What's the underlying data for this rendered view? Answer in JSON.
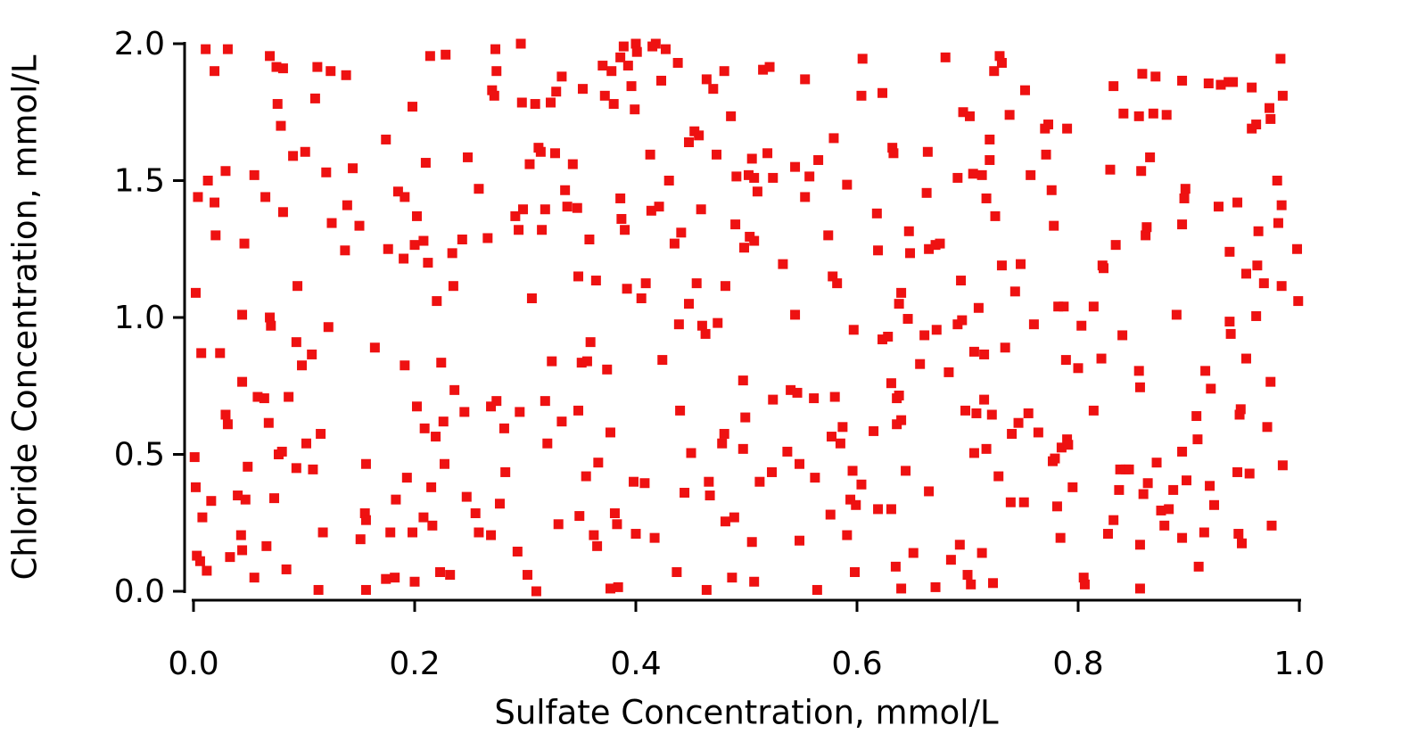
{
  "chart_data": {
    "type": "scatter",
    "x_label": "Sulfate Concentration, mmol/L",
    "y_label": "Chloride Concentration, mmol/L",
    "color": "#ee1111",
    "xlim": [
      0,
      1
    ],
    "ylim": [
      0,
      2
    ],
    "xticks": [
      {
        "value": 0,
        "label": "0.0"
      },
      0.2,
      0.4,
      0.6,
      0.8,
      {
        "value": 1,
        "label": "1.0"
      }
    ],
    "yticks": [
      {
        "value": 0,
        "label": "0.0"
      },
      0.5,
      {
        "value": 1,
        "label": "1.0"
      },
      1.5,
      {
        "value": 2,
        "label": "2.0"
      }
    ],
    "x": [
      0.002,
      0.001,
      0.002,
      0.003,
      0.006,
      0.011,
      0.004,
      0.013,
      0.008,
      0.012,
      0.007,
      0.016,
      0.019,
      0.019,
      0.02,
      0.024,
      0.029,
      0.031,
      0.029,
      0.031,
      0.033,
      0.04,
      0.043,
      0.044,
      0.044,
      0.047,
      0.046,
      0.044,
      0.049,
      0.055,
      0.055,
      0.058,
      0.064,
      0.065,
      0.066,
      0.068,
      0.069,
      0.069,
      0.07,
      0.073,
      0.075,
      0.076,
      0.079,
      0.077,
      0.08,
      0.081,
      0.081,
      0.084,
      0.086,
      0.093,
      0.09,
      0.094,
      0.093,
      0.098,
      0.101,
      0.102,
      0.107,
      0.108,
      0.11,
      0.112,
      0.113,
      0.115,
      0.117,
      0.12,
      0.122,
      0.124,
      0.125,
      0.138,
      0.137,
      0.139,
      0.144,
      0.15,
      0.151,
      0.156,
      0.155,
      0.156,
      0.156,
      0.164,
      0.174,
      0.176,
      0.174,
      0.178,
      0.182,
      0.183,
      0.185,
      0.19,
      0.191,
      0.191,
      0.193,
      0.198,
      0.198,
      0.2,
      0.2,
      0.202,
      0.202,
      0.208,
      0.209,
      0.208,
      0.21,
      0.212,
      0.214,
      0.215,
      0.216,
      0.219,
      0.22,
      0.223,
      0.224,
      0.226,
      0.227,
      0.228,
      0.232,
      0.234,
      0.235,
      0.236,
      0.243,
      0.245,
      0.247,
      0.248,
      0.255,
      0.258,
      0.258,
      0.266,
      0.269,
      0.269,
      0.27,
      0.272,
      0.273,
      0.274,
      0.274,
      0.277,
      0.281,
      0.282,
      0.291,
      0.293,
      0.294,
      0.295,
      0.296,
      0.297,
      0.298,
      0.302,
      0.304,
      0.306,
      0.309,
      0.31,
      0.312,
      0.314,
      0.315,
      0.318,
      0.318,
      0.32,
      0.323,
      0.324,
      0.327,
      0.328,
      0.33,
      0.333,
      0.333,
      0.336,
      0.338,
      0.343,
      0.347,
      0.348,
      0.348,
      0.349,
      0.351,
      0.352,
      0.355,
      0.356,
      0.358,
      0.359,
      0.362,
      0.364,
      0.365,
      0.366,
      0.37,
      0.372,
      0.374,
      0.377,
      0.377,
      0.378,
      0.381,
      0.38,
      0.384,
      0.383,
      0.386,
      0.386,
      0.387,
      0.389,
      0.39,
      0.392,
      0.393,
      0.396,
      0.398,
      0.399,
      0.4,
      0.4,
      0.401,
      0.405,
      0.408,
      0.409,
      0.413,
      0.414,
      0.415,
      0.417,
      0.418,
      0.421,
      0.423,
      0.424,
      0.427,
      0.43,
      0.435,
      0.437,
      0.438,
      0.439,
      0.44,
      0.441,
      0.444,
      0.448,
      0.448,
      0.45,
      0.453,
      0.455,
      0.457,
      0.459,
      0.46,
      0.463,
      0.464,
      0.464,
      0.466,
      0.467,
      0.47,
      0.473,
      0.474,
      0.478,
      0.48,
      0.48,
      0.481,
      0.481,
      0.486,
      0.487,
      0.489,
      0.49,
      0.491,
      0.497,
      0.497,
      0.498,
      0.499,
      0.502,
      0.503,
      0.505,
      0.505,
      0.507,
      0.507,
      0.507,
      0.51,
      0.512,
      0.515,
      0.519,
      0.521,
      0.523,
      0.524,
      0.524,
      0.533,
      0.537,
      0.54,
      0.544,
      0.544,
      0.546,
      0.548,
      0.548,
      0.553,
      0.553,
      0.557,
      0.561,
      0.562,
      0.564,
      0.565,
      0.574,
      0.576,
      0.577,
      0.578,
      0.579,
      0.58,
      0.582,
      0.585,
      0.587,
      0.591,
      0.591,
      0.594,
      0.596,
      0.597,
      0.598,
      0.599,
      0.604,
      0.604,
      0.605,
      0.615,
      0.618,
      0.619,
      0.619,
      0.623,
      0.623,
      0.628,
      0.631,
      0.631,
      0.632,
      0.633,
      0.635,
      0.636,
      0.636,
      0.638,
      0.638,
      0.64,
      0.64,
      0.64,
      0.644,
      0.646,
      0.648,
      0.647,
      0.651,
      0.657,
      0.661,
      0.663,
      0.664,
      0.665,
      0.665,
      0.671,
      0.672,
      0.671,
      0.675,
      0.68,
      0.683,
      0.685,
      0.691,
      0.691,
      0.693,
      0.694,
      0.695,
      0.696,
      0.698,
      0.7,
      0.702,
      0.703,
      0.705,
      0.706,
      0.706,
      0.708,
      0.71,
      0.713,
      0.713,
      0.715,
      0.715,
      0.717,
      0.717,
      0.72,
      0.72,
      0.722,
      0.723,
      0.724,
      0.725,
      0.728,
      0.729,
      0.731,
      0.731,
      0.734,
      0.738,
      0.739,
      0.74,
      0.743,
      0.746,
      0.748,
      0.751,
      0.752,
      0.755,
      0.757,
      0.76,
      0.764,
      0.77,
      0.771,
      0.773,
      0.776,
      0.777,
      0.778,
      0.779,
      0.781,
      0.782,
      0.784,
      0.785,
      0.789,
      0.79,
      0.79,
      0.787,
      0.791,
      0.795,
      0.8,
      0.803,
      0.805,
      0.806,
      0.814,
      0.814,
      0.821,
      0.822,
      0.823,
      0.827,
      0.829,
      0.832,
      0.832,
      0.834,
      0.837,
      0.838,
      0.84,
      0.841,
      0.843,
      0.846,
      0.855,
      0.855,
      0.856,
      0.856,
      0.856,
      0.857,
      0.858,
      0.859,
      0.861,
      0.862,
      0.863,
      0.865,
      0.868,
      0.87,
      0.871,
      0.875,
      0.878,
      0.88,
      0.882,
      0.886,
      0.889,
      0.894,
      0.894,
      0.894,
      0.896,
      0.897,
      0.898,
      0.894,
      0.907,
      0.908,
      0.909,
      0.914,
      0.915,
      0.918,
      0.919,
      0.92,
      0.923,
      0.927,
      0.929,
      0.936,
      0.937,
      0.937,
      0.938,
      0.94,
      0.944,
      0.944,
      0.945,
      0.946,
      0.947,
      0.948,
      0.952,
      0.952,
      0.955,
      0.957,
      0.957,
      0.961,
      0.961,
      0.962,
      0.963,
      0.968,
      0.971,
      0.973,
      0.974,
      0.974,
      0.975,
      0.98,
      0.981,
      0.983,
      0.984,
      0.984,
      0.985,
      0.985,
      0.998,
      0.999
    ],
    "values": [
      1.09,
      0.49,
      0.38,
      0.13,
      0.11,
      1.98,
      1.44,
      1.5,
      0.27,
      0.075,
      0.87,
      0.33,
      1.9,
      1.42,
      1.3,
      0.87,
      0.645,
      0.61,
      1.535,
      1.98,
      0.125,
      0.35,
      0.205,
      0.15,
      0.765,
      0.335,
      1.27,
      1.01,
      0.455,
      1.52,
      0.05,
      0.71,
      0.705,
      1.44,
      0.165,
      0.615,
      1.955,
      1.0,
      0.97,
      0.34,
      1.915,
      1.78,
      1.7,
      0.5,
      0.51,
      1.91,
      1.385,
      0.08,
      0.71,
      0.91,
      1.59,
      1.115,
      0.45,
      0.825,
      1.605,
      0.54,
      0.865,
      0.445,
      1.8,
      1.915,
      0.005,
      0.575,
      0.215,
      1.53,
      0.965,
      1.9,
      1.345,
      1.885,
      1.245,
      1.41,
      1.545,
      1.335,
      0.19,
      0.465,
      0.285,
      0.26,
      0.005,
      0.89,
      1.65,
      1.25,
      0.045,
      0.215,
      0.05,
      0.335,
      1.46,
      1.215,
      0.825,
      1.44,
      0.415,
      0.215,
      1.77,
      0.035,
      1.265,
      1.37,
      0.675,
      1.28,
      0.595,
      0.27,
      1.565,
      1.2,
      1.955,
      0.38,
      0.24,
      0.565,
      1.06,
      0.07,
      0.835,
      0.62,
      0.465,
      1.96,
      0.06,
      1.235,
      1.115,
      0.735,
      1.285,
      0.655,
      0.345,
      1.585,
      0.285,
      1.47,
      0.215,
      1.29,
      0.675,
      0.205,
      1.83,
      1.81,
      1.98,
      0.695,
      1.9,
      0.32,
      0.595,
      0.435,
      1.37,
      0.145,
      1.32,
      0.655,
      2.0,
      1.785,
      1.395,
      0.06,
      1.56,
      1.07,
      1.78,
      0.0,
      1.62,
      1.605,
      1.32,
      0.695,
      1.395,
      0.54,
      1.785,
      0.84,
      1.6,
      1.825,
      0.245,
      1.88,
      0.62,
      1.465,
      1.405,
      1.56,
      1.4,
      1.15,
      0.66,
      0.275,
      0.835,
      1.835,
      0.42,
      0.84,
      1.285,
      0.91,
      0.205,
      1.135,
      0.165,
      0.47,
      1.92,
      1.81,
      0.81,
      0.58,
      0.01,
      1.9,
      0.285,
      1.78,
      0.015,
      0.245,
      1.95,
      1.435,
      1.36,
      1.99,
      1.32,
      1.105,
      1.92,
      1.845,
      0.4,
      1.76,
      2.0,
      0.21,
      1.97,
      1.07,
      0.395,
      1.125,
      1.595,
      1.39,
      1.99,
      0.195,
      2.0,
      1.405,
      1.865,
      0.845,
      1.98,
      1.5,
      1.27,
      0.07,
      1.93,
      0.975,
      0.66,
      1.31,
      0.36,
      1.05,
      1.64,
      0.505,
      1.68,
      1.125,
      1.665,
      1.395,
      0.97,
      0.94,
      1.87,
      0.005,
      0.4,
      0.35,
      1.835,
      1.595,
      0.98,
      0.54,
      1.9,
      0.575,
      1.115,
      0.255,
      1.735,
      0.05,
      0.27,
      1.34,
      1.515,
      0.52,
      0.77,
      1.255,
      0.635,
      1.52,
      1.295,
      1.58,
      0.18,
      0.035,
      1.28,
      1.51,
      1.46,
      0.4,
      1.905,
      1.6,
      1.915,
      0.435,
      0.7,
      1.51,
      1.195,
      0.51,
      0.735,
      1.01,
      1.55,
      0.725,
      0.465,
      0.185,
      1.44,
      1.87,
      1.515,
      0.705,
      0.415,
      0.005,
      1.575,
      1.3,
      0.28,
      0.565,
      1.15,
      1.655,
      0.71,
      1.125,
      0.54,
      0.6,
      1.485,
      0.205,
      0.335,
      0.44,
      0.955,
      0.07,
      0.315,
      0.39,
      1.81,
      1.945,
      0.585,
      1.38,
      0.3,
      1.245,
      1.82,
      0.92,
      0.93,
      0.3,
      0.76,
      1.62,
      1.6,
      0.09,
      0.61,
      0.705,
      0.715,
      1.05,
      0.625,
      0.01,
      1.09,
      0.44,
      0.995,
      1.235,
      1.315,
      0.14,
      0.83,
      0.935,
      1.455,
      1.605,
      0.365,
      1.25,
      0.015,
      0.955,
      1.265,
      1.27,
      1.95,
      0.8,
      0.115,
      1.51,
      0.975,
      0.17,
      1.135,
      0.99,
      1.75,
      0.66,
      0.06,
      1.735,
      0.025,
      1.525,
      0.505,
      0.875,
      0.65,
      1.035,
      1.52,
      0.14,
      0.865,
      0.7,
      0.52,
      1.435,
      1.575,
      1.65,
      0.645,
      0.03,
      1.9,
      1.37,
      0.42,
      1.955,
      1.93,
      1.19,
      0.89,
      1.74,
      0.325,
      0.575,
      1.095,
      0.615,
      1.195,
      0.325,
      1.83,
      0.65,
      1.52,
      0.975,
      0.58,
      1.69,
      1.595,
      1.705,
      1.465,
      0.475,
      1.335,
      0.485,
      0.31,
      1.04,
      0.195,
      0.525,
      0.845,
      0.555,
      1.69,
      1.04,
      0.535,
      0.38,
      0.815,
      0.97,
      0.05,
      0.025,
      1.04,
      0.66,
      0.85,
      1.19,
      1.18,
      0.21,
      1.54,
      1.845,
      0.26,
      1.265,
      0.37,
      0.445,
      0.935,
      1.745,
      0.445,
      0.445,
      1.735,
      0.805,
      0.745,
      0.17,
      0.01,
      1.535,
      1.89,
      0.355,
      1.3,
      1.33,
      0.395,
      1.585,
      1.745,
      1.88,
      0.47,
      0.295,
      0.24,
      1.74,
      0.3,
      0.37,
      1.01,
      1.34,
      0.195,
      0.51,
      1.435,
      1.47,
      0.405,
      1.865,
      0.64,
      0.555,
      0.09,
      0.215,
      0.805,
      1.855,
      0.385,
      0.74,
      0.315,
      1.405,
      1.85,
      1.86,
      1.24,
      0.985,
      0.94,
      1.86,
      1.42,
      0.435,
      0.21,
      0.645,
      0.665,
      0.175,
      1.16,
      0.85,
      0.43,
      1.84,
      1.69,
      1.005,
      1.705,
      1.19,
      1.315,
      1.125,
      0.6,
      1.765,
      1.725,
      0.765,
      0.24,
      1.5,
      1.345,
      1.945,
      1.41,
      1.115,
      0.46,
      1.81,
      1.25,
      1.06
    ]
  }
}
